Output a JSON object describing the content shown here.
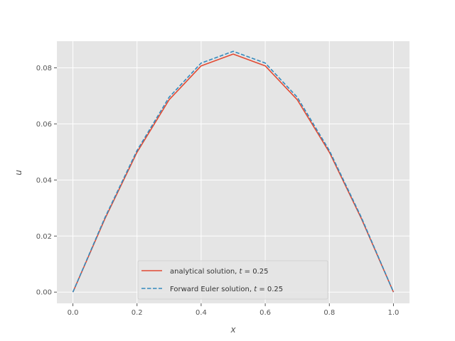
{
  "chart_data": {
    "type": "line",
    "title": "",
    "xlabel": "x",
    "ylabel": "u",
    "xlim": [
      -0.05,
      1.05
    ],
    "ylim": [
      -0.004,
      0.0895
    ],
    "grid": true,
    "legend_position": "lower center",
    "x_ticks": [
      {
        "value": 0.0,
        "label": "0.0"
      },
      {
        "value": 0.2,
        "label": "0.2"
      },
      {
        "value": 0.4,
        "label": "0.4"
      },
      {
        "value": 0.6,
        "label": "0.6"
      },
      {
        "value": 0.8,
        "label": "0.8"
      },
      {
        "value": 1.0,
        "label": "1.0"
      }
    ],
    "y_ticks": [
      {
        "value": 0.0,
        "label": "0.00"
      },
      {
        "value": 0.02,
        "label": "0.02"
      },
      {
        "value": 0.04,
        "label": "0.04"
      },
      {
        "value": 0.06,
        "label": "0.06"
      },
      {
        "value": 0.08,
        "label": "0.08"
      }
    ],
    "x": [
      0.0,
      0.1,
      0.2,
      0.3,
      0.4,
      0.5,
      0.6,
      0.7,
      0.8,
      0.9,
      1.0
    ],
    "series": [
      {
        "name": "analytical solution, t = 0.25",
        "name_parts": {
          "text": "analytical solution, ",
          "var": "t",
          "rest": " = 0.25"
        },
        "color": "#E24A33",
        "dash": "solid",
        "values": [
          0.0,
          0.0262,
          0.0499,
          0.0686,
          0.0807,
          0.0849,
          0.0807,
          0.0686,
          0.0499,
          0.0262,
          0.0
        ]
      },
      {
        "name": "Forward Euler solution, t = 0.25",
        "name_parts": {
          "text": "Forward Euler solution, ",
          "var": "t",
          "rest": " = 0.25"
        },
        "color": "#348ABD",
        "dash": "dashed",
        "values": [
          0.0,
          0.0266,
          0.0505,
          0.0695,
          0.0817,
          0.0859,
          0.0817,
          0.0695,
          0.0505,
          0.0266,
          0.0
        ]
      }
    ],
    "colors": {
      "plot_background": "#E5E5E5",
      "grid": "#FFFFFF"
    }
  }
}
